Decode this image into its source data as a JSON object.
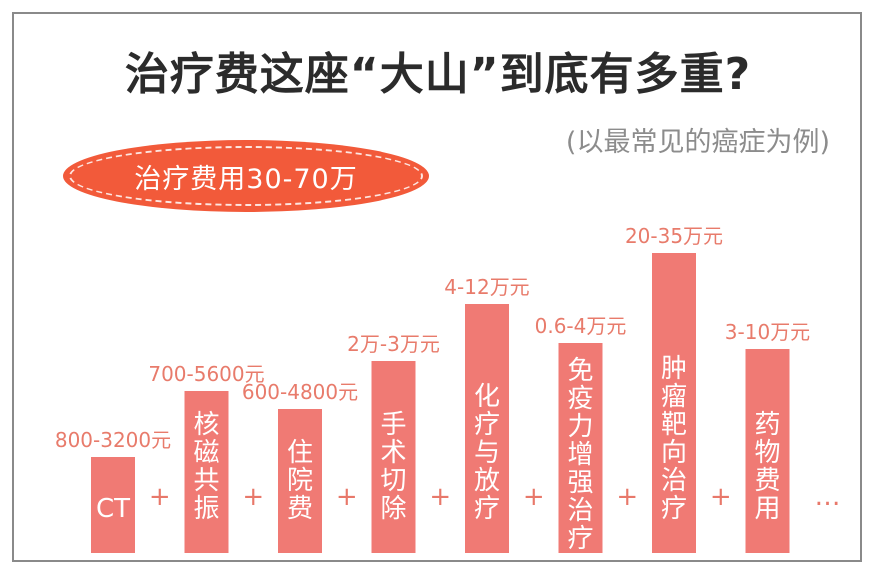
{
  "title": "治疗费这座“大山”到底有多重?",
  "subtitle": "(以最常见的癌症为例)",
  "badge": "治疗费用30-70万",
  "colors": {
    "bar": "#f07a74",
    "badge": "#f25a3a",
    "label": "#e87b6b",
    "title": "#2b2b2b"
  },
  "separator": "+",
  "ellipsis": "…",
  "chart_data": {
    "type": "bar",
    "categories": [
      "CT",
      "核磁共振",
      "住院费",
      "手术切除",
      "化疗与放疗",
      "免疫力增强治疗",
      "肿瘤靶向治疗",
      "药物费用"
    ],
    "range_labels": [
      "800-3200元",
      "700-5600元",
      "600-4800元",
      "2万-3万元",
      "4-12万元",
      "0.6-4万元",
      "20-35万元",
      "3-10万元"
    ],
    "relative_heights": [
      0.32,
      0.54,
      0.48,
      0.64,
      0.83,
      0.7,
      1.0,
      0.68
    ]
  }
}
